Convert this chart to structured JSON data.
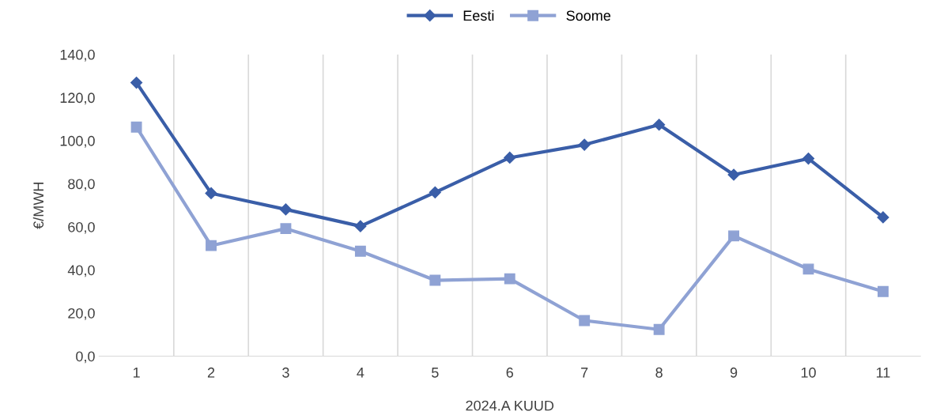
{
  "chart_data": {
    "type": "line",
    "xlabel": "2024.A KUUD",
    "ylabel": "€/MWH",
    "categories": [
      "1",
      "2",
      "3",
      "4",
      "5",
      "6",
      "7",
      "8",
      "9",
      "10",
      "11"
    ],
    "series": [
      {
        "name": "Eesti",
        "color": "#3a5ea8",
        "marker": "diamond",
        "values": [
          126.9,
          75.6,
          68.1,
          60.3,
          76.0,
          92.1,
          98.1,
          107.4,
          84.2,
          91.7,
          64.4
        ]
      },
      {
        "name": "Soome",
        "color": "#8fa2d4",
        "marker": "square",
        "values": [
          106.3,
          51.3,
          59.2,
          48.7,
          35.2,
          35.9,
          16.5,
          12.4,
          55.8,
          40.4,
          30.0
        ]
      }
    ],
    "ylim": [
      0,
      140
    ],
    "yticks": [
      {
        "value": 0,
        "label": "0,0"
      },
      {
        "value": 20,
        "label": "20,0"
      },
      {
        "value": 40,
        "label": "40,0"
      },
      {
        "value": 60,
        "label": "60,0"
      },
      {
        "value": 80,
        "label": "80,0"
      },
      {
        "value": 100,
        "label": "100,0"
      },
      {
        "value": 120,
        "label": "120,0"
      },
      {
        "value": 140,
        "label": "140,0"
      }
    ],
    "grid": "x",
    "legend": "top",
    "line_style": "solid"
  }
}
